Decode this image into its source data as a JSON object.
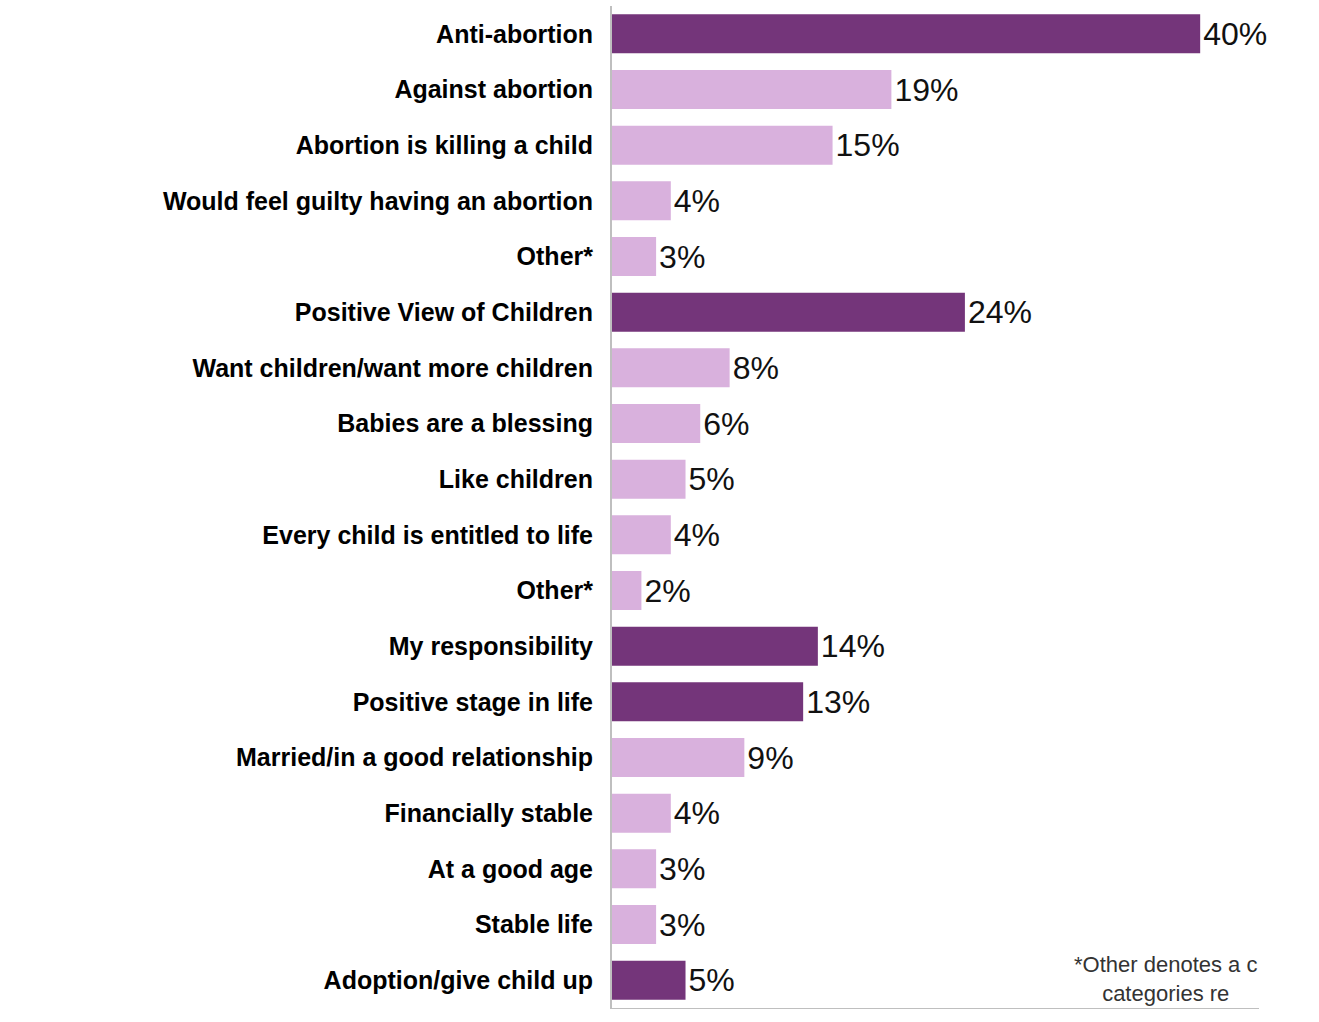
{
  "chart_data": {
    "type": "bar",
    "orientation": "horizontal",
    "categories": [
      "Anti-abortion",
      "Against abortion",
      "Abortion is killing a child",
      "Would feel guilty having an abortion",
      "Other*",
      "Positive View of Children",
      "Want children/want more children",
      "Babies are a blessing",
      "Like children",
      "Every child is entitled to life",
      "Other*",
      "My responsibility",
      "Positive stage in life",
      "Married/in a good relationship",
      "Financially stable",
      "At a good age",
      "Stable life",
      "Adoption/give child up"
    ],
    "values": [
      40,
      19,
      15,
      4,
      3,
      24,
      8,
      6,
      5,
      4,
      2,
      14,
      13,
      9,
      4,
      3,
      3,
      5
    ],
    "value_labels": [
      "40%",
      "19%",
      "15%",
      "4%",
      "3%",
      "24%",
      "8%",
      "6%",
      "5%",
      "4%",
      "2%",
      "14%",
      "13%",
      "9%",
      "4%",
      "3%",
      "3%",
      "5%"
    ],
    "colors": [
      "#74357a",
      "#d9b1dd",
      "#d9b1dd",
      "#d9b1dd",
      "#d9b1dd",
      "#74357a",
      "#d9b1dd",
      "#d9b1dd",
      "#d9b1dd",
      "#d9b1dd",
      "#d9b1dd",
      "#74357a",
      "#74357a",
      "#d9b1dd",
      "#d9b1dd",
      "#d9b1dd",
      "#d9b1dd",
      "#74357a"
    ],
    "xlim": [
      0,
      44
    ],
    "xticks": [],
    "grid": false,
    "data_labels": true,
    "tick_labels": "y",
    "annotations": [
      "*Other denotes a c",
      "categories re"
    ]
  }
}
